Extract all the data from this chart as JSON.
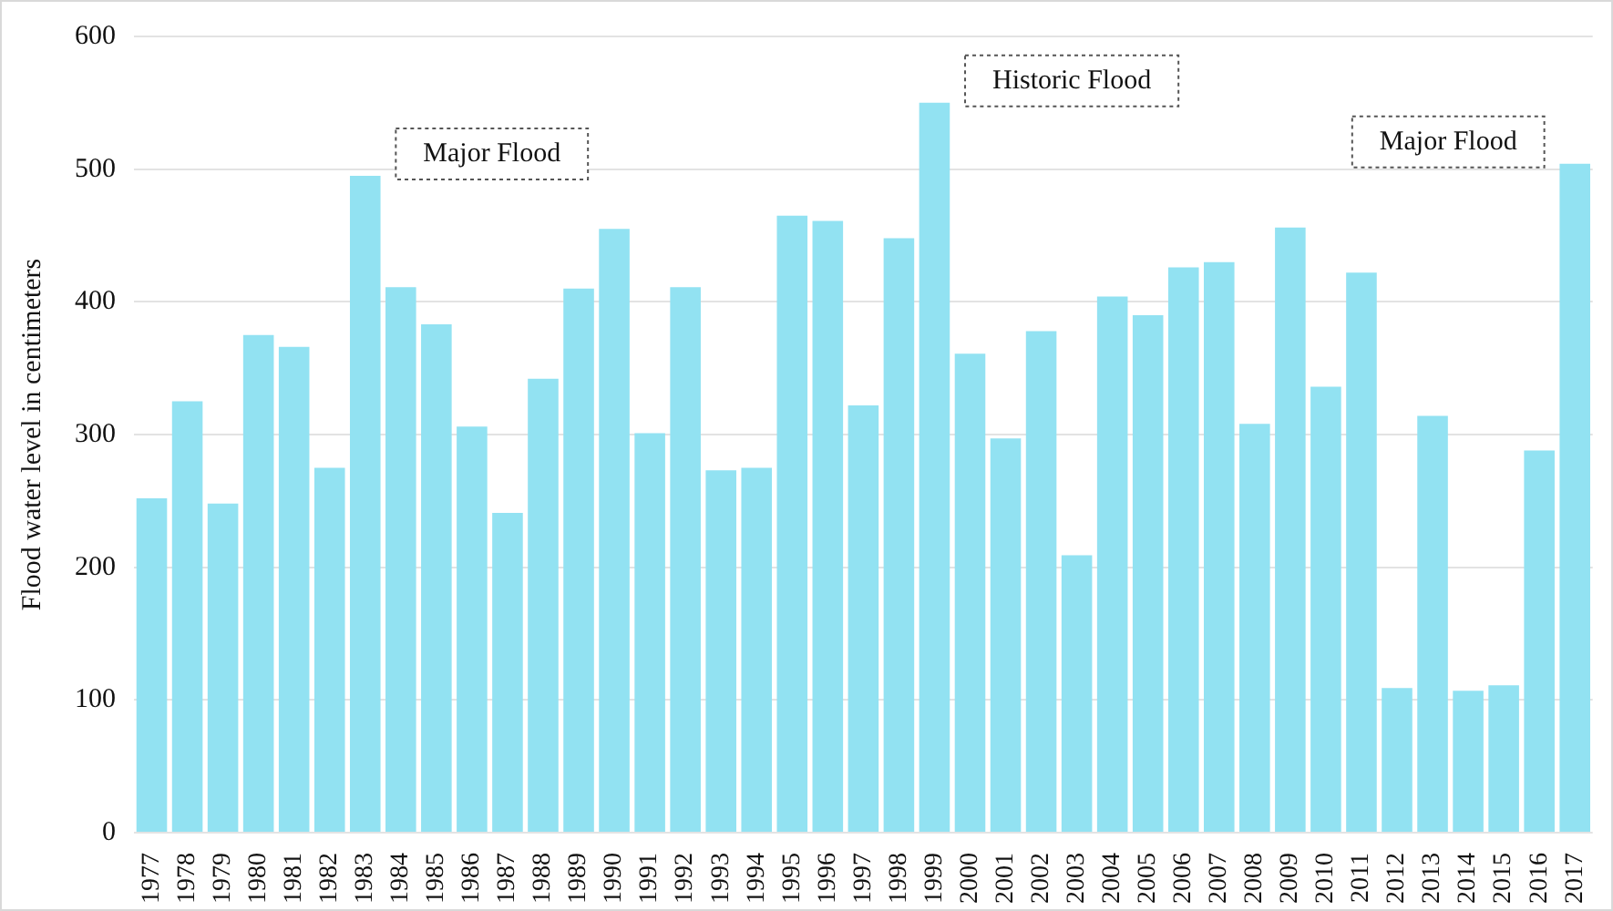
{
  "chart_data": {
    "type": "bar",
    "ylabel": "Flood water level in centimeters",
    "categories": [
      "1977",
      "1978",
      "1979",
      "1980",
      "1981",
      "1982",
      "1983",
      "1984",
      "1985",
      "1986",
      "1987",
      "1988",
      "1989",
      "1990",
      "1991",
      "1992",
      "1993",
      "1994",
      "1995",
      "1996",
      "1997",
      "1998",
      "1999",
      "2000",
      "2001",
      "2002",
      "2003",
      "2004",
      "2005",
      "2006",
      "2007",
      "2008",
      "2009",
      "2010",
      "2011",
      "2012",
      "2013",
      "2014",
      "2015",
      "2016",
      "2017"
    ],
    "values": [
      252,
      325,
      248,
      375,
      366,
      275,
      495,
      411,
      383,
      306,
      241,
      342,
      410,
      455,
      301,
      411,
      273,
      275,
      465,
      461,
      322,
      448,
      550,
      361,
      297,
      378,
      209,
      404,
      390,
      426,
      430,
      308,
      456,
      336,
      422,
      109,
      314,
      107,
      111,
      288,
      504
    ],
    "color": "#92e2f2",
    "ylim": [
      0,
      600
    ],
    "yticks": [
      0,
      100,
      200,
      300,
      400,
      500,
      600
    ],
    "grid": "y",
    "annotations": [
      {
        "text": "Major Flood",
        "x": "1983",
        "y": 495
      },
      {
        "text": "Historic Flood",
        "x": "1999",
        "y": 550
      },
      {
        "text": "Major Flood",
        "x": "2017",
        "y": 504
      }
    ]
  }
}
